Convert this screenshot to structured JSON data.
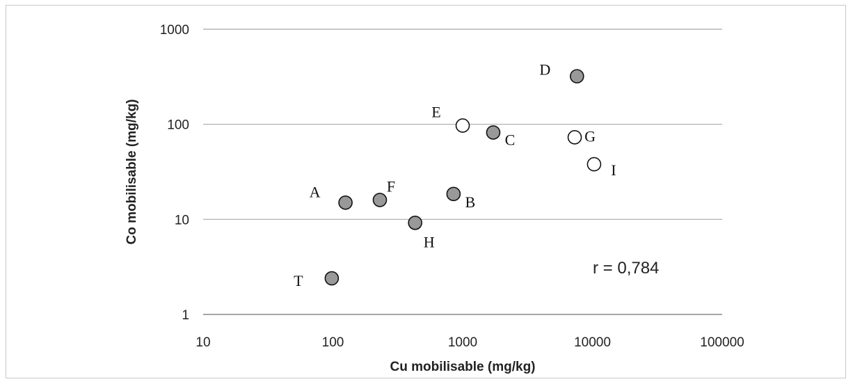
{
  "chart_data": {
    "type": "scatter",
    "title": "",
    "xlabel": "Cu mobilisable (mg/kg)",
    "ylabel": "Co mobilisable (mg/kg)",
    "x_scale": "log",
    "y_scale": "log",
    "xlim": [
      10,
      100000
    ],
    "ylim": [
      1,
      1000
    ],
    "x_ticks": [
      "10",
      "100",
      "1000",
      "10000",
      "100000"
    ],
    "y_ticks": [
      "1",
      "10",
      "100",
      "1000"
    ],
    "grid": "horizontal",
    "colors": {
      "filled": "#999999",
      "open": "#ffffff",
      "stroke": "#111111",
      "grid": "#a8a8a8"
    },
    "points": [
      {
        "label": "A",
        "x": 125,
        "y": 15,
        "marker": "filled"
      },
      {
        "label": "F",
        "x": 230,
        "y": 16,
        "marker": "filled"
      },
      {
        "label": "B",
        "x": 850,
        "y": 18.5,
        "marker": "filled"
      },
      {
        "label": "H",
        "x": 430,
        "y": 9.2,
        "marker": "filled"
      },
      {
        "label": "T",
        "x": 98,
        "y": 2.4,
        "marker": "filled"
      },
      {
        "label": "E",
        "x": 1000,
        "y": 97,
        "marker": "open"
      },
      {
        "label": "C",
        "x": 1720,
        "y": 82,
        "marker": "filled"
      },
      {
        "label": "D",
        "x": 7600,
        "y": 320,
        "marker": "filled"
      },
      {
        "label": "G",
        "x": 7300,
        "y": 73,
        "marker": "open"
      },
      {
        "label": "I",
        "x": 10300,
        "y": 38,
        "marker": "open"
      }
    ],
    "annotation": "r = 0,784"
  }
}
